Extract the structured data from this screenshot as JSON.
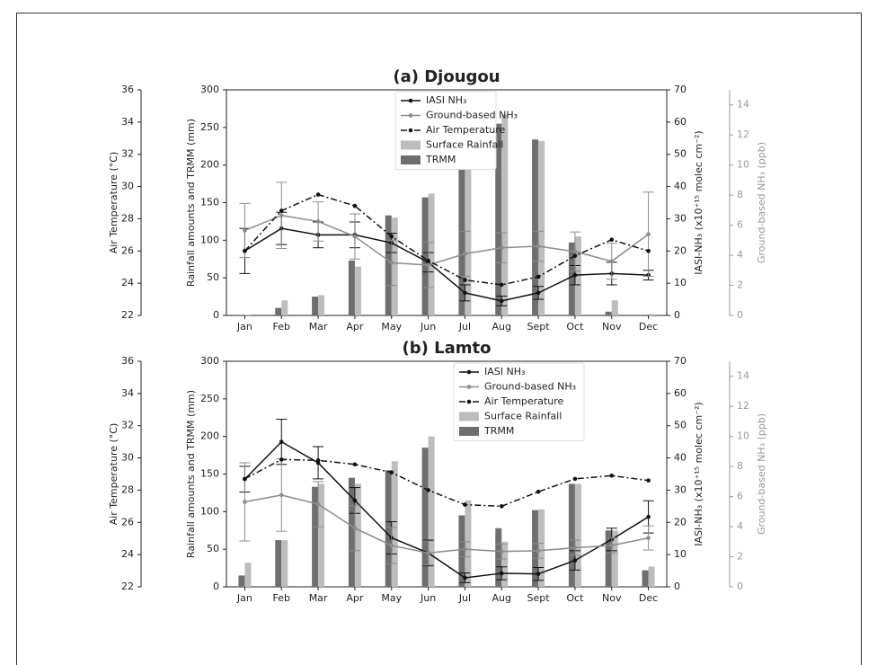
{
  "chart_data": [
    {
      "type": "combo",
      "title": "(a) Djougou",
      "categories": [
        "Jan",
        "Feb",
        "Mar",
        "Apr",
        "May",
        "Jun",
        "Jul",
        "Aug",
        "Sept",
        "Oct",
        "Nov",
        "Dec"
      ],
      "ylabel": "Rainfall amounts and TRMM (mm)",
      "ylim": [
        0,
        300
      ],
      "yticks": [
        0,
        50,
        100,
        150,
        200,
        250,
        300
      ],
      "y2label": "IASI-NH₃  (x10⁺¹⁵ molec cm⁻²)",
      "y2lim": [
        0,
        70
      ],
      "y2ticks": [
        0,
        10,
        20,
        30,
        40,
        50,
        60,
        70
      ],
      "y3label": "Air Temperature (°C)",
      "y3lim": [
        22,
        36
      ],
      "y3ticks": [
        22,
        24,
        26,
        28,
        30,
        32,
        34,
        36
      ],
      "y4label": "Ground-based NH₃ (ppb)",
      "y4lim": [
        0,
        15
      ],
      "y4ticks": [
        0,
        2,
        4,
        6,
        8,
        10,
        12,
        14
      ],
      "y4color": "#999999",
      "legend": "upper center",
      "series": [
        {
          "name": "IASI NH₃",
          "type": "line",
          "axis": "y2",
          "color": "#111111",
          "style": "solid",
          "values": [
            20,
            27,
            25,
            25,
            22.5,
            16.5,
            7,
            4.5,
            7,
            12.5,
            13,
            12.5
          ],
          "errors": [
            7,
            5,
            4,
            4,
            3,
            3,
            2.5,
            1.5,
            2,
            3,
            3.5,
            1.5
          ]
        },
        {
          "name": "Ground-based NH₃",
          "type": "line",
          "axis": "y4",
          "color": "#8c8c8c",
          "style": "solid",
          "values": [
            5.65,
            6.65,
            6.25,
            5.25,
            3.5,
            3.35,
            4.1,
            4.5,
            4.6,
            4.25,
            3.6,
            5.4
          ],
          "errors": [
            1.8,
            2.2,
            1.3,
            1.5,
            1.5,
            1.5,
            1.5,
            1,
            1,
            1.3,
            1.2,
            2.8
          ]
        },
        {
          "name": "Air Temperature",
          "type": "line",
          "axis": "y3",
          "color": "#111111",
          "style": "dashdot",
          "values": [
            26,
            28.5,
            29.5,
            28.8,
            26.9,
            25.4,
            24.2,
            23.9,
            24.4,
            25.7,
            26.7,
            26
          ]
        },
        {
          "name": "Surface Rainfall",
          "type": "bar",
          "axis": "y",
          "color": "#bdbdbd",
          "values": [
            1,
            20,
            27,
            65,
            130,
            162,
            210,
            267,
            232,
            105,
            20,
            2
          ]
        },
        {
          "name": "TRMM",
          "type": "bar",
          "axis": "y",
          "color": "#6e6e6e",
          "values": [
            0,
            10,
            25,
            73,
            133,
            157,
            198,
            255,
            234,
            97,
            5,
            1
          ]
        }
      ]
    },
    {
      "type": "combo",
      "title": "(b) Lamto",
      "categories": [
        "Jan",
        "Feb",
        "Mar",
        "Apr",
        "May",
        "Jun",
        "Jul",
        "Aug",
        "Sept",
        "Oct",
        "Nov",
        "Dec"
      ],
      "ylabel": "Rainfall amounts and TRMM (mm)",
      "ylim": [
        0,
        300
      ],
      "yticks": [
        0,
        50,
        100,
        150,
        200,
        250,
        300
      ],
      "y2label": "IASI-NH₃  (x10⁺¹⁵ molec cm⁻²)",
      "y2lim": [
        0,
        70
      ],
      "y2ticks": [
        0,
        10,
        20,
        30,
        40,
        50,
        60,
        70
      ],
      "y3label": "Air Temperature (°C)",
      "y3lim": [
        22,
        36
      ],
      "y3ticks": [
        22,
        24,
        26,
        28,
        30,
        32,
        34,
        36
      ],
      "y4label": "Ground-based NH₃ (ppb)",
      "y4lim": [
        0,
        15
      ],
      "y4ticks": [
        0,
        2,
        4,
        6,
        8,
        10,
        12,
        14
      ],
      "y4color": "#999999",
      "legend": "upper right",
      "series": [
        {
          "name": "IASI NH₃",
          "type": "line",
          "axis": "y2",
          "color": "#111111",
          "style": "solid",
          "values": [
            33.4,
            45,
            38.5,
            26.8,
            15.2,
            10.5,
            2.8,
            4.2,
            4,
            8.2,
            14.7,
            21.7
          ],
          "errors": [
            4,
            7,
            5,
            4,
            5,
            4,
            1.5,
            2,
            2,
            3,
            3.5,
            5
          ]
        },
        {
          "name": "Ground-based NH₃",
          "type": "line",
          "axis": "y4",
          "color": "#8c8c8c",
          "style": "solid",
          "values": [
            5.65,
            6.1,
            5.5,
            3.9,
            2.75,
            2.25,
            2.5,
            2.35,
            2.4,
            2.6,
            2.75,
            3.25
          ],
          "errors": [
            2.6,
            2.4,
            1.5,
            1.5,
            1.2,
            0.8,
            0.5,
            0.5,
            0.5,
            0.5,
            0.5,
            0.8
          ]
        },
        {
          "name": "Air Temperature",
          "type": "line",
          "axis": "y3",
          "color": "#111111",
          "style": "dashdot",
          "values": [
            28.7,
            29.9,
            29.85,
            29.6,
            29.1,
            28,
            27.1,
            27,
            27.9,
            28.7,
            28.9,
            28.6
          ]
        },
        {
          "name": "Surface Rainfall",
          "type": "bar",
          "axis": "y",
          "color": "#bdbdbd",
          "values": [
            32,
            62,
            137,
            137,
            167,
            200,
            115,
            60,
            103,
            137,
            75,
            27
          ]
        },
        {
          "name": "TRMM",
          "type": "bar",
          "axis": "y",
          "color": "#6e6e6e",
          "values": [
            15,
            62,
            133,
            145,
            155,
            185,
            95,
            78,
            102,
            137,
            75,
            22
          ]
        }
      ]
    }
  ]
}
